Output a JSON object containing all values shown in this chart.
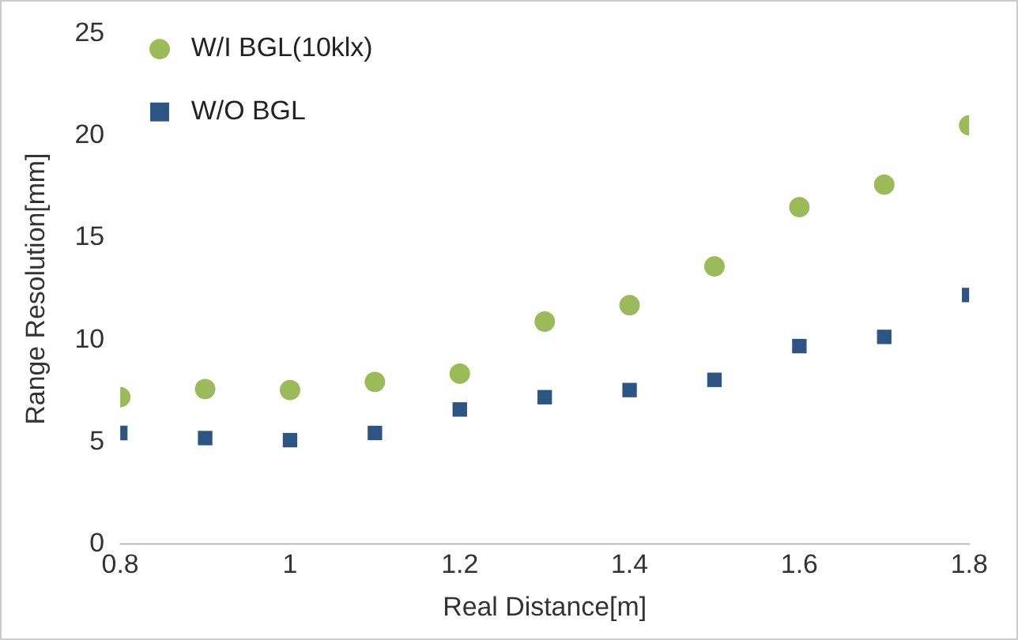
{
  "chart_data": {
    "type": "scatter",
    "xlabel": "Real Distance[m]",
    "ylabel": "Range Resolution[mm]",
    "x": [
      0.8,
      0.9,
      1.0,
      1.1,
      1.2,
      1.3,
      1.4,
      1.5,
      1.6,
      1.7,
      1.8
    ],
    "series": [
      {
        "name": "W/I BGL(10klx)",
        "color": "#9bbb59",
        "marker": "circle",
        "values": [
          7.2,
          7.6,
          7.55,
          7.95,
          8.35,
          10.9,
          11.7,
          13.6,
          16.5,
          17.6,
          20.5
        ]
      },
      {
        "name": "W/O BGL",
        "color": "#2c5584",
        "marker": "square",
        "values": [
          5.45,
          5.2,
          5.1,
          5.45,
          6.6,
          7.2,
          7.55,
          8.05,
          9.7,
          10.15,
          12.2
        ]
      }
    ],
    "xlim": [
      0.8,
      1.8
    ],
    "xticks": [
      0.8,
      1,
      1.2,
      1.4,
      1.6,
      1.8
    ],
    "ylim": [
      0,
      25
    ],
    "yticks": [
      0,
      5,
      10,
      15,
      20,
      25
    ],
    "grid": false,
    "legend": "top left"
  }
}
